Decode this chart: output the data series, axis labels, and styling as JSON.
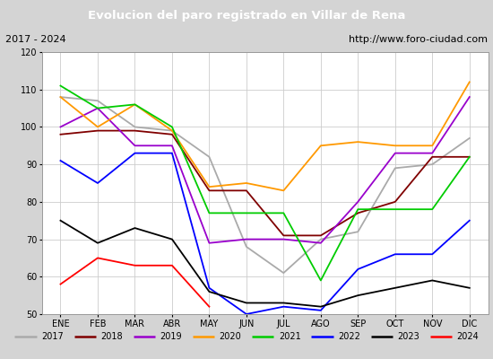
{
  "title": "Evolucion del paro registrado en Villar de Rena",
  "subtitle_left": "2017 - 2024",
  "subtitle_right": "http://www.foro-ciudad.com",
  "ylim": [
    50,
    120
  ],
  "months": [
    "ENE",
    "FEB",
    "MAR",
    "ABR",
    "MAY",
    "JUN",
    "JUL",
    "AGO",
    "SEP",
    "OCT",
    "NOV",
    "DIC"
  ],
  "series": {
    "2017": {
      "color": "#aaaaaa",
      "values": [
        108,
        107,
        100,
        99,
        92,
        68,
        61,
        70,
        72,
        89,
        90,
        97
      ]
    },
    "2018": {
      "color": "#800000",
      "values": [
        98,
        99,
        99,
        98,
        83,
        83,
        71,
        71,
        77,
        80,
        92,
        92
      ]
    },
    "2019": {
      "color": "#9900cc",
      "values": [
        100,
        105,
        95,
        95,
        69,
        70,
        70,
        69,
        80,
        93,
        93,
        108
      ]
    },
    "2020": {
      "color": "#ff9900",
      "values": [
        108,
        100,
        106,
        99,
        84,
        85,
        83,
        95,
        96,
        95,
        95,
        112
      ]
    },
    "2021": {
      "color": "#00cc00",
      "values": [
        111,
        105,
        106,
        100,
        77,
        77,
        77,
        59,
        78,
        78,
        78,
        92
      ]
    },
    "2022": {
      "color": "#0000ff",
      "values": [
        91,
        85,
        93,
        93,
        57,
        50,
        52,
        51,
        62,
        66,
        66,
        75
      ]
    },
    "2023": {
      "color": "#000000",
      "values": [
        75,
        69,
        73,
        70,
        56,
        53,
        53,
        52,
        55,
        57,
        59,
        57
      ]
    },
    "2024": {
      "color": "#ff0000",
      "values": [
        58,
        65,
        63,
        63,
        52,
        null,
        null,
        null,
        null,
        null,
        null,
        null
      ]
    }
  },
  "background_color": "#d4d4d4",
  "plot_background": "#ffffff",
  "title_bg": "#4477cc",
  "title_color": "#ffffff",
  "subtitle_bg": "#e8e8e8",
  "grid_color": "#cccccc",
  "legend_bg": "#ffffff",
  "legend_border": "#aaaaaa"
}
